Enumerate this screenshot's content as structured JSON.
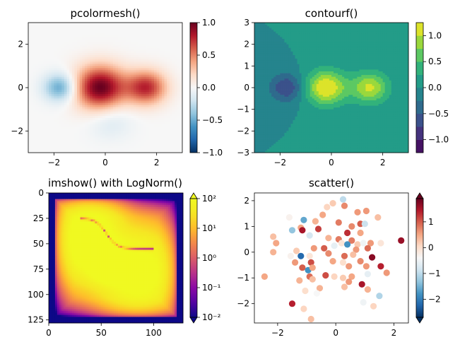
{
  "figure": {
    "background": "#ffffff"
  },
  "chart_data": [
    {
      "type": "heatmap",
      "title": "pcolormesh()",
      "xlabel": "",
      "ylabel": "",
      "xlim": [
        -3,
        3
      ],
      "ylim": [
        -3,
        3
      ],
      "x_ticks": [
        -2,
        0,
        2
      ],
      "x_tick_labels": [
        "−2",
        "0",
        "2"
      ],
      "y_ticks": [
        -2,
        0,
        2
      ],
      "y_tick_labels": [
        "−2",
        "0",
        "2"
      ],
      "colormap": "RdBu_r",
      "color_range": [
        -1,
        1
      ],
      "colorbar": {
        "ticks": [
          -1,
          -0.5,
          0,
          0.5,
          1
        ],
        "tick_labels": [
          "−1.0",
          "−0.5",
          "0.0",
          "0.5",
          "1.0"
        ],
        "extend": "neither"
      },
      "field": {
        "description_terms": [
          {
            "x0": -0.2,
            "y0": 0.0,
            "weight": 1.0,
            "sigma": 0.7
          },
          {
            "x0": 1.6,
            "y0": 0.0,
            "weight": 0.75,
            "sigma": 0.55
          },
          {
            "x0": -1.75,
            "y0": 0.0,
            "weight": -0.55,
            "sigma": 0.45
          },
          {
            "x0": 0.2,
            "y0": -1.5,
            "weight": -0.15,
            "sigma": 0.6
          }
        ]
      }
    },
    {
      "type": "heatmap",
      "title": "contourf()",
      "xlabel": "",
      "ylabel": "",
      "xlim": [
        -3,
        3
      ],
      "ylim": [
        -3,
        3
      ],
      "x_ticks": [
        -2,
        0,
        2
      ],
      "x_tick_labels": [
        "−2",
        "0",
        "2"
      ],
      "y_ticks": [
        -3,
        -2,
        -1,
        0,
        1,
        2,
        3
      ],
      "y_tick_labels": [
        "−3",
        "−2",
        "−1",
        "0",
        "1",
        "2",
        "3"
      ],
      "colormap": "viridis",
      "color_range": [
        -1.25,
        1.25
      ],
      "levels": [
        -1.25,
        -1.0,
        -0.75,
        -0.5,
        -0.25,
        0,
        0.25,
        0.5,
        0.75,
        1.0,
        1.25
      ],
      "colorbar": {
        "ticks": [
          -1.0,
          -0.5,
          0.0,
          0.5,
          1.0
        ],
        "tick_labels": [
          "−1.0",
          "−0.5",
          "0.0",
          "0.5",
          "1.0"
        ],
        "extend": "neither"
      },
      "field": {
        "description_terms": [
          {
            "x0": -0.2,
            "y0": 0.0,
            "weight": 1.3,
            "sigma": 0.55
          },
          {
            "x0": 1.5,
            "y0": 0.0,
            "weight": 1.05,
            "sigma": 0.5
          },
          {
            "x0": -1.75,
            "y0": 0.0,
            "weight": -0.75,
            "sigma": 0.45
          }
        ]
      }
    },
    {
      "type": "heatmap",
      "title": "imshow() with LogNorm()",
      "xlabel": "",
      "ylabel": "",
      "xlim": [
        0,
        128
      ],
      "ylim": [
        128,
        0
      ],
      "x_ticks": [
        0,
        50,
        100
      ],
      "x_tick_labels": [
        "0",
        "50",
        "100"
      ],
      "y_ticks": [
        0,
        25,
        50,
        75,
        100,
        125
      ],
      "y_tick_labels": [
        "0",
        "25",
        "50",
        "75",
        "100",
        "125"
      ],
      "colormap": "plasma",
      "norm": "log",
      "color_range": [
        0.01,
        100
      ],
      "colorbar": {
        "ticks": [
          0.01,
          0.1,
          1,
          10,
          100
        ],
        "tick_labels": [
          "10⁻²",
          "10⁻¹",
          "10⁰",
          "10¹",
          "10²"
        ],
        "extend": "both"
      }
    },
    {
      "type": "scatter",
      "title": "scatter()",
      "xlabel": "",
      "ylabel": "",
      "xlim": [
        -2.8,
        2.5
      ],
      "ylim": [
        -2.75,
        2.3
      ],
      "x_ticks": [
        -2,
        0,
        2
      ],
      "x_tick_labels": [
        "−2",
        "0",
        "2"
      ],
      "y_ticks": [
        -2,
        -1,
        0,
        1,
        2
      ],
      "y_tick_labels": [
        "−2",
        "−1",
        "0",
        "1",
        "2"
      ],
      "colormap": "RdBu_r",
      "color_range": [
        -2.7,
        1.9
      ],
      "colorbar": {
        "ticks": [
          -2,
          -1,
          0,
          1
        ],
        "tick_labels": [
          "−2",
          "−1",
          "0",
          "1"
        ],
        "extend": "both"
      },
      "points": [
        {
          "x": 0.25,
          "y": 2.05,
          "c": -1.0
        },
        {
          "x": -0.1,
          "y": 1.9,
          "c": 0.2
        },
        {
          "x": 0.3,
          "y": 1.8,
          "c": 0.7
        },
        {
          "x": -0.3,
          "y": 1.75,
          "c": 0.1
        },
        {
          "x": 0.75,
          "y": 1.55,
          "c": 0.6
        },
        {
          "x": 1.05,
          "y": 1.6,
          "c": 0.6
        },
        {
          "x": -0.45,
          "y": 1.45,
          "c": 0.5
        },
        {
          "x": -1.6,
          "y": 1.35,
          "c": -0.3
        },
        {
          "x": -1.1,
          "y": 1.25,
          "c": -1.6
        },
        {
          "x": -0.7,
          "y": 1.2,
          "c": 0.4
        },
        {
          "x": 0.1,
          "y": 1.15,
          "c": 0.8
        },
        {
          "x": 1.45,
          "y": 1.35,
          "c": 0.3
        },
        {
          "x": 0.55,
          "y": 1.0,
          "c": 0.7
        },
        {
          "x": 0.85,
          "y": 1.1,
          "c": 1.0
        },
        {
          "x": 1.0,
          "y": 1.1,
          "c": -0.9
        },
        {
          "x": -1.2,
          "y": 0.95,
          "c": 0.5
        },
        {
          "x": -0.6,
          "y": 0.9,
          "c": 1.2
        },
        {
          "x": -1.5,
          "y": 0.85,
          "c": -1.3
        },
        {
          "x": -1.15,
          "y": 0.85,
          "c": 1.5
        },
        {
          "x": 0.4,
          "y": 0.75,
          "c": 1.3
        },
        {
          "x": 0.85,
          "y": 0.75,
          "c": 0.5
        },
        {
          "x": -2.15,
          "y": 0.6,
          "c": 0.3
        },
        {
          "x": -0.9,
          "y": 0.65,
          "c": -0.8
        },
        {
          "x": -0.25,
          "y": 0.55,
          "c": 0.4
        },
        {
          "x": 0.1,
          "y": 0.5,
          "c": 0.8
        },
        {
          "x": 0.55,
          "y": 0.45,
          "c": 0.8
        },
        {
          "x": 1.2,
          "y": 0.35,
          "c": 0.6
        },
        {
          "x": -2.05,
          "y": 0.35,
          "c": 0.5
        },
        {
          "x": 0.2,
          "y": 0.35,
          "c": -0.1
        },
        {
          "x": 0.4,
          "y": 0.3,
          "c": -1.8
        },
        {
          "x": -0.05,
          "y": 0.25,
          "c": -0.6
        },
        {
          "x": 0.75,
          "y": 0.3,
          "c": 0.2
        },
        {
          "x": 0.95,
          "y": 0.35,
          "c": -0.5
        },
        {
          "x": 1.55,
          "y": 0.35,
          "c": -0.1
        },
        {
          "x": 2.25,
          "y": 0.45,
          "c": 1.6
        },
        {
          "x": -2.15,
          "y": 0.0,
          "c": 0.4
        },
        {
          "x": -1.35,
          "y": 0.05,
          "c": 0.2
        },
        {
          "x": -0.75,
          "y": 0.15,
          "c": 0.6
        },
        {
          "x": -0.4,
          "y": 0.15,
          "c": 1.0
        },
        {
          "x": 0.7,
          "y": 0.1,
          "c": 0.6
        },
        {
          "x": 1.1,
          "y": 0.15,
          "c": 0.9
        },
        {
          "x": -1.55,
          "y": -0.15,
          "c": -0.3
        },
        {
          "x": -1.2,
          "y": -0.15,
          "c": -2.2
        },
        {
          "x": -0.9,
          "y": -0.15,
          "c": -0.1
        },
        {
          "x": -0.25,
          "y": -0.05,
          "c": 0.7
        },
        {
          "x": 0.3,
          "y": -0.15,
          "c": 0.9
        },
        {
          "x": 0.6,
          "y": -0.1,
          "c": 0.3
        },
        {
          "x": 1.25,
          "y": -0.2,
          "c": 1.7
        },
        {
          "x": -1.4,
          "y": -0.4,
          "c": 0.6
        },
        {
          "x": -0.85,
          "y": -0.4,
          "c": 1.1
        },
        {
          "x": -0.1,
          "y": -0.35,
          "c": 0.5
        },
        {
          "x": 0.25,
          "y": -0.4,
          "c": 0.0
        },
        {
          "x": 0.85,
          "y": -0.35,
          "c": 0.7
        },
        {
          "x": 1.05,
          "y": -0.55,
          "c": 0.6
        },
        {
          "x": 1.55,
          "y": -0.55,
          "c": 1.4
        },
        {
          "x": -1.15,
          "y": -0.6,
          "c": 1.0
        },
        {
          "x": -0.95,
          "y": -0.7,
          "c": -1.8
        },
        {
          "x": -0.8,
          "y": -0.6,
          "c": 0.5
        },
        {
          "x": 0.45,
          "y": -0.55,
          "c": 0.6
        },
        {
          "x": 1.1,
          "y": -0.85,
          "c": -0.6
        },
        {
          "x": 1.75,
          "y": -0.8,
          "c": 0.6
        },
        {
          "x": -2.45,
          "y": -0.95,
          "c": 0.5
        },
        {
          "x": -0.9,
          "y": -0.95,
          "c": 0.9
        },
        {
          "x": -0.05,
          "y": -0.95,
          "c": 0.1
        },
        {
          "x": 0.25,
          "y": -1.0,
          "c": 0.2
        },
        {
          "x": 0.55,
          "y": -0.95,
          "c": 0.5
        },
        {
          "x": -1.25,
          "y": -1.1,
          "c": 0.4
        },
        {
          "x": -0.8,
          "y": -1.05,
          "c": 0.3
        },
        {
          "x": 0.45,
          "y": -1.15,
          "c": 0.6
        },
        {
          "x": -1.05,
          "y": -1.5,
          "c": 0.0
        },
        {
          "x": -0.55,
          "y": -1.4,
          "c": 0.4
        },
        {
          "x": 0.3,
          "y": -1.35,
          "c": 0.3
        },
        {
          "x": 0.9,
          "y": -1.25,
          "c": 1.5
        },
        {
          "x": 1.1,
          "y": -1.45,
          "c": 0.4
        },
        {
          "x": -0.65,
          "y": -1.6,
          "c": -0.4
        },
        {
          "x": -1.5,
          "y": -2.0,
          "c": 1.4
        },
        {
          "x": -1.1,
          "y": -2.2,
          "c": 0.1
        },
        {
          "x": 1.5,
          "y": -1.7,
          "c": -1.1
        },
        {
          "x": 0.95,
          "y": -1.95,
          "c": -0.5
        },
        {
          "x": 1.3,
          "y": -2.1,
          "c": 0.1
        },
        {
          "x": -0.85,
          "y": -2.6,
          "c": 0.3
        },
        {
          "x": -0.35,
          "y": -0.9,
          "c": 1.1
        }
      ]
    }
  ]
}
